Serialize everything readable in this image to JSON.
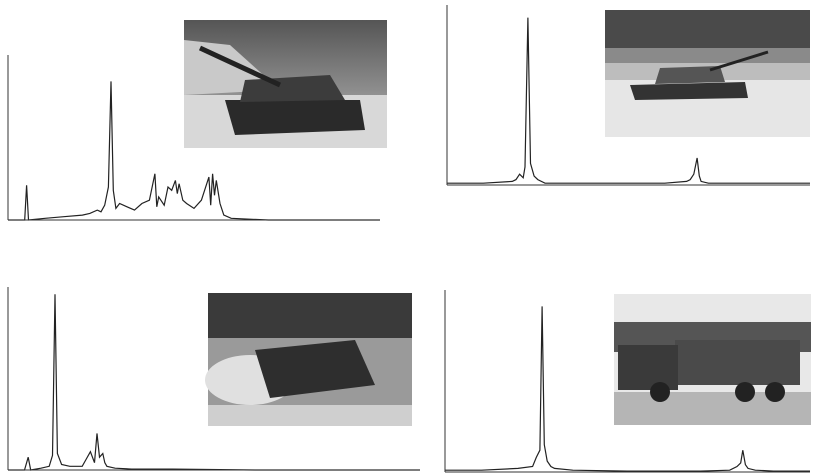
{
  "chart_data": [
    {
      "type": "line",
      "color": "#222222",
      "xlim": [
        0,
        100
      ],
      "ylim": [
        0,
        100
      ],
      "x": [
        0,
        4.5,
        5,
        5.5,
        10,
        15,
        20,
        22,
        24,
        25,
        26,
        27,
        27.7,
        28.3,
        29,
        30,
        32,
        34,
        36,
        38,
        39.5,
        40,
        40.5,
        42,
        43,
        44,
        45,
        45.5,
        46,
        47,
        48,
        50,
        52,
        54,
        54.5,
        55,
        55.5,
        56,
        57,
        58,
        60,
        65,
        70,
        80,
        100
      ],
      "values": [
        0,
        0,
        21,
        0,
        1,
        2,
        3,
        4,
        6,
        5,
        9,
        20,
        84,
        18,
        7,
        10,
        8,
        6,
        10,
        12,
        28,
        8,
        14,
        9,
        20,
        18,
        24,
        16,
        22,
        12,
        10,
        7,
        12,
        26,
        9,
        28,
        15,
        24,
        10,
        3,
        1,
        0.5,
        0,
        0,
        0
      ]
    },
    {
      "type": "line",
      "color": "#222222",
      "xlim": [
        0,
        100
      ],
      "ylim": [
        0,
        100
      ],
      "x": [
        0,
        10,
        18,
        19,
        20,
        21,
        21.5,
        22.3,
        23,
        24,
        25,
        27,
        30,
        40,
        50,
        60,
        66,
        67,
        68,
        68.9,
        69.5,
        70,
        72,
        80,
        100
      ],
      "values": [
        1,
        1,
        2,
        3,
        6,
        4,
        10,
        93,
        12,
        5,
        3,
        1,
        1,
        1,
        1,
        1,
        2,
        3,
        6,
        15,
        5,
        2,
        1,
        1,
        1
      ]
    },
    {
      "type": "line",
      "color": "#222222",
      "xlim": [
        0,
        100
      ],
      "ylim": [
        0,
        100
      ],
      "x": [
        0,
        4,
        4.9,
        5.5,
        8,
        10,
        10.8,
        11.4,
        12,
        13,
        15,
        18,
        19,
        20,
        21,
        21.6,
        22.2,
        23,
        23.5,
        24,
        26,
        30,
        40,
        60,
        100
      ],
      "values": [
        0,
        0,
        7,
        0,
        1,
        2,
        8,
        96,
        9,
        3,
        2,
        2,
        6,
        10,
        4,
        20,
        7,
        9,
        4,
        2,
        1,
        0.5,
        0.5,
        0,
        0
      ]
    },
    {
      "type": "line",
      "color": "#222222",
      "xlim": [
        0,
        100
      ],
      "ylim": [
        0,
        100
      ],
      "x": [
        0,
        10,
        20,
        24,
        25,
        26,
        26.6,
        27.2,
        28,
        29,
        30,
        35,
        50,
        70,
        78,
        80,
        81,
        81.6,
        82.3,
        83,
        85,
        90,
        100
      ],
      "values": [
        1,
        1,
        2,
        3,
        8,
        12,
        91,
        15,
        6,
        3,
        2,
        1,
        0.5,
        0.5,
        1,
        3,
        5,
        12,
        4,
        2,
        1,
        0.5,
        0.5
      ]
    }
  ]
}
